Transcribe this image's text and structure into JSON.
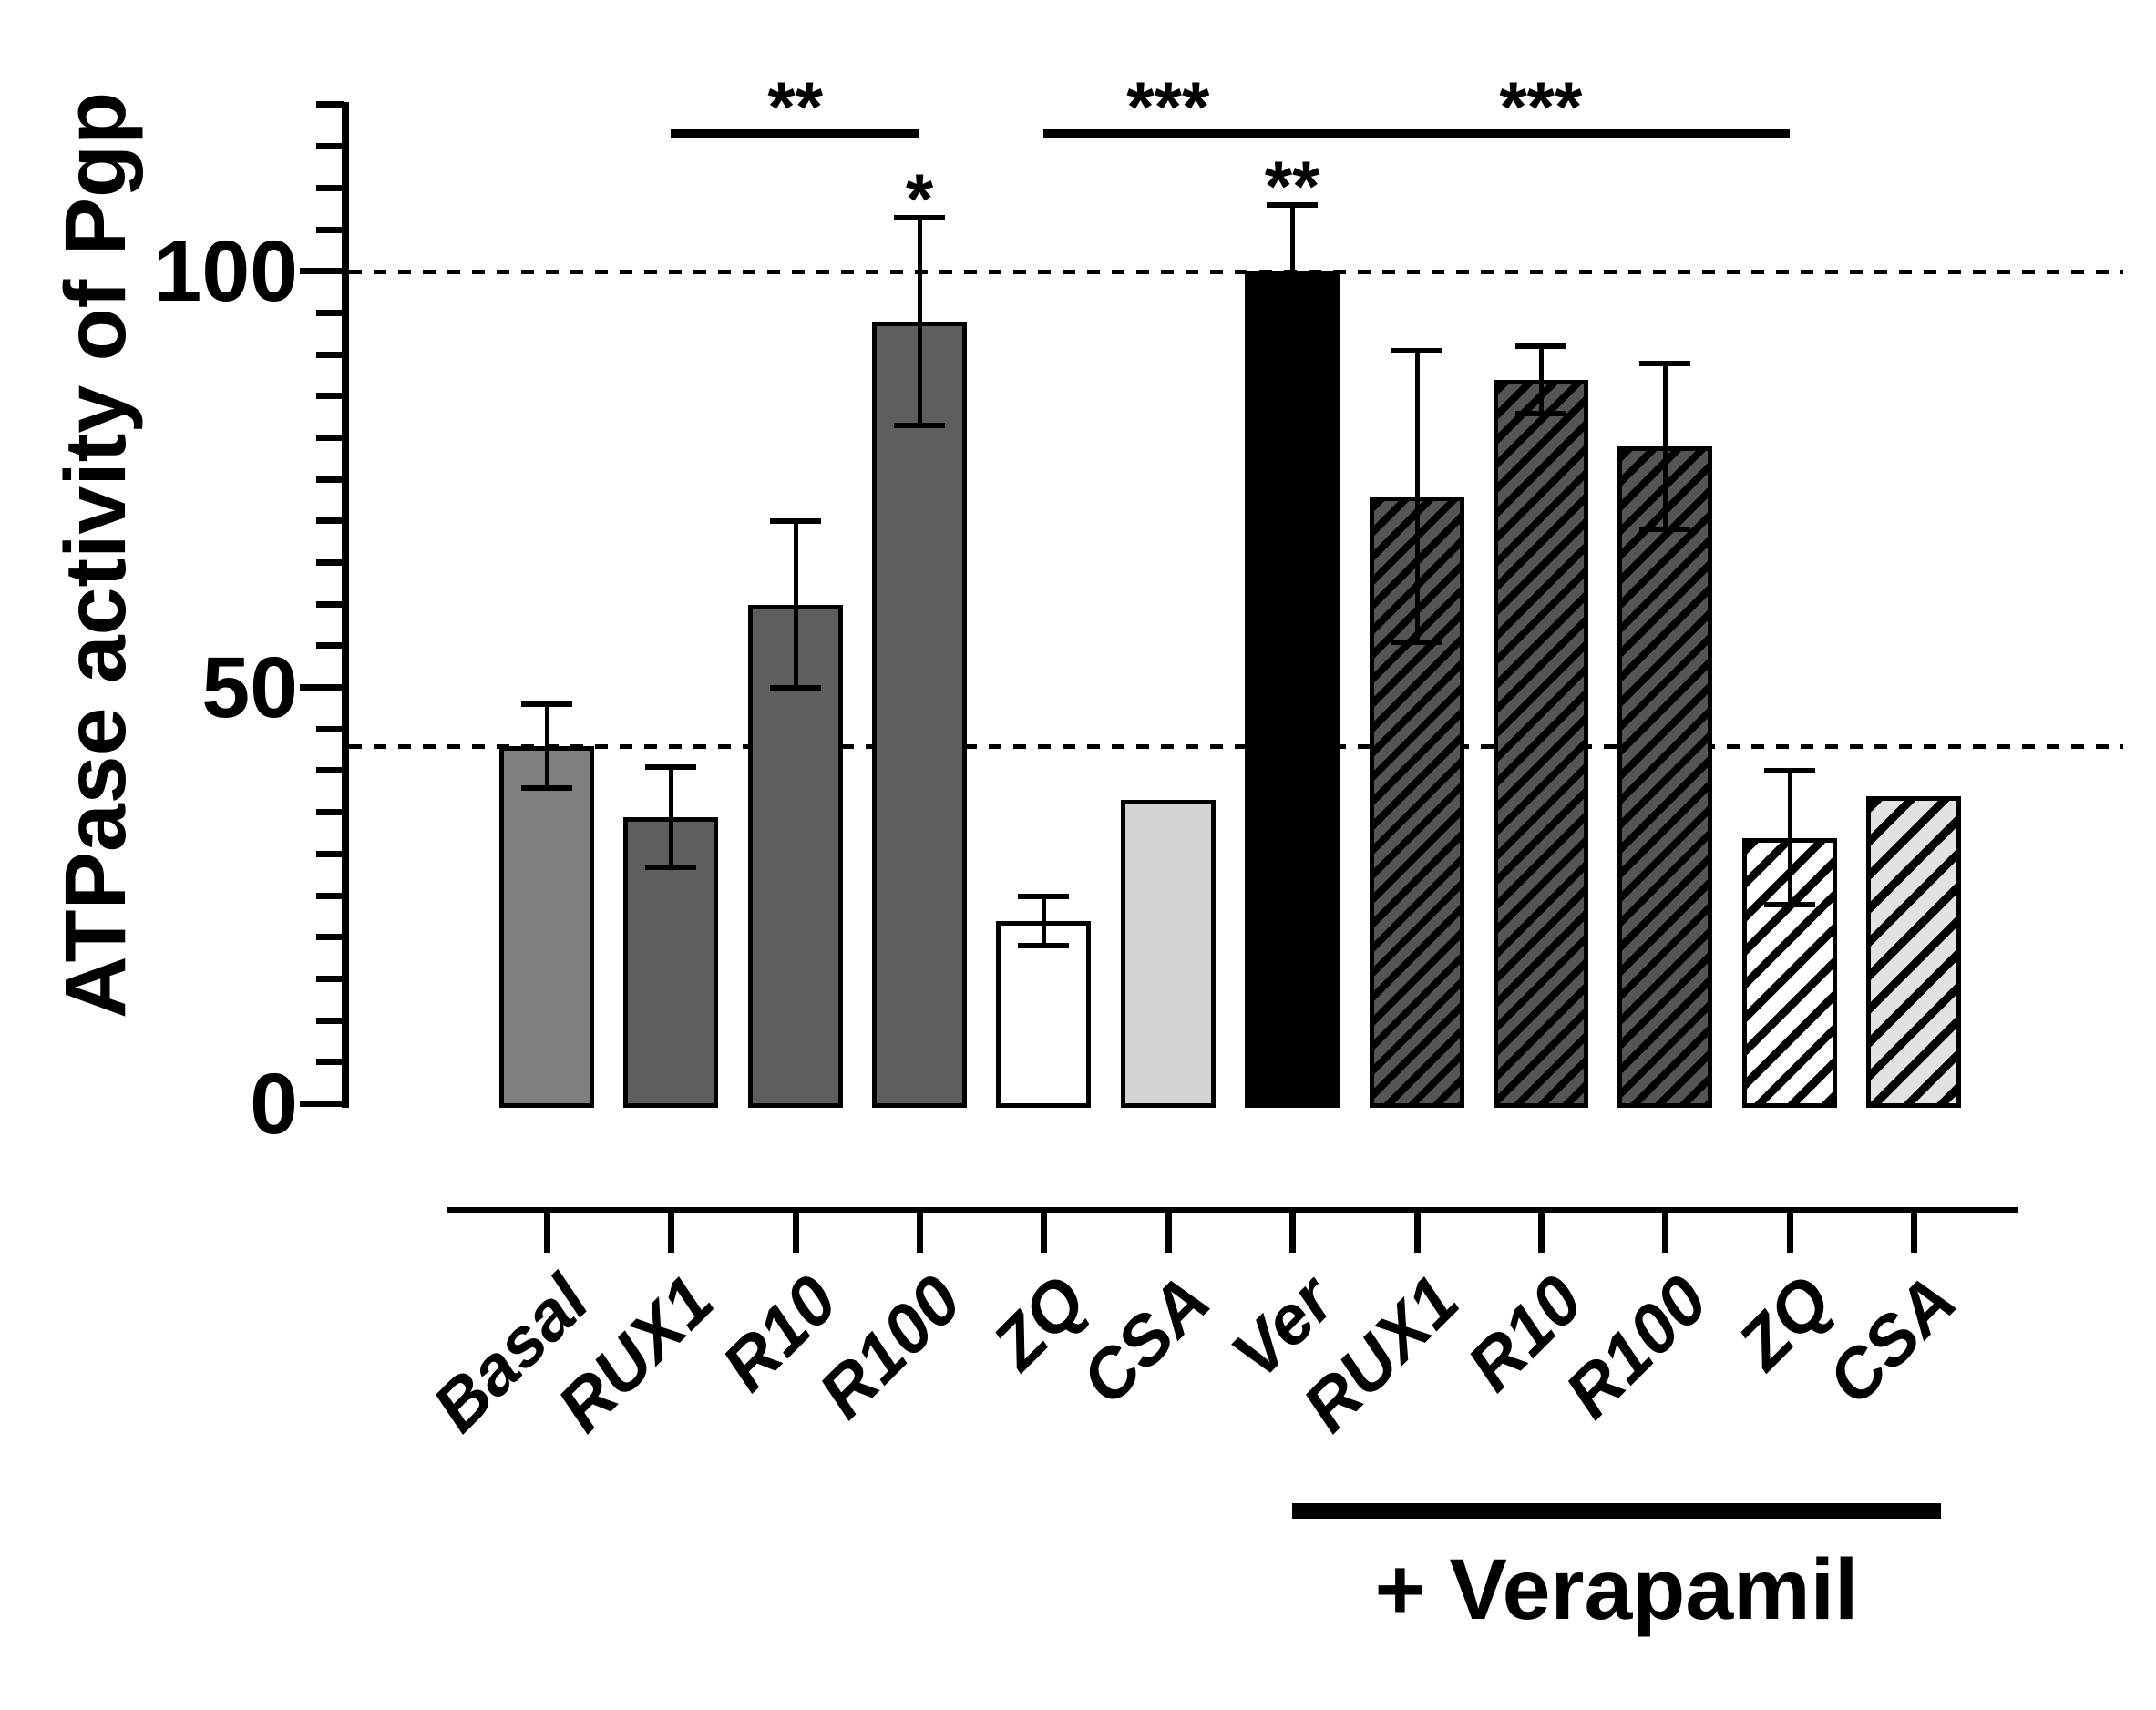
{
  "figure": {
    "background": "#ffffff",
    "text_color": "#000000"
  },
  "chart_data": {
    "type": "bar",
    "title": "",
    "xlabel": "",
    "ylabel": "ATPase activity of Pgp",
    "ylim": [
      0,
      120
    ],
    "y_ticks": [
      0,
      50,
      100
    ],
    "y_minor_step": 5,
    "grid": false,
    "legend": "none",
    "reference_lines_dashed": [
      43,
      100
    ],
    "categories": [
      "Basal",
      "RUX1",
      "R10",
      "R100",
      "ZQ",
      "CSA",
      "Ver",
      "RUX1",
      "R10",
      "R100",
      "ZQ",
      "CSA"
    ],
    "bars": [
      {
        "label": "Basal",
        "value": 43,
        "error": 5,
        "fill": "#7f7f7f",
        "hatch": false,
        "annotation": ""
      },
      {
        "label": "RUX1",
        "value": 34.5,
        "error": 6,
        "fill": "#5e5e5e",
        "hatch": false,
        "annotation": ""
      },
      {
        "label": "R10",
        "value": 60,
        "error": 10,
        "fill": "#5e5e5e",
        "hatch": false,
        "annotation": ""
      },
      {
        "label": "R100",
        "value": 94,
        "error": 12.5,
        "fill": "#5e5e5e",
        "hatch": false,
        "annotation": "*"
      },
      {
        "label": "ZQ",
        "value": 22,
        "error": 3,
        "fill": "#ffffff",
        "hatch": false,
        "annotation": ""
      },
      {
        "label": "CSA",
        "value": 36.5,
        "error": null,
        "fill": "#d4d4d4",
        "hatch": false,
        "annotation": ""
      },
      {
        "label": "Ver",
        "value": 100,
        "error": 8,
        "fill": "#000000",
        "hatch": false,
        "annotation": "**"
      },
      {
        "label": "RUX1",
        "value": 73,
        "error": 17.5,
        "fill": "#555555",
        "hatch": true,
        "annotation": ""
      },
      {
        "label": "R10",
        "value": 87,
        "error": 4,
        "fill": "#555555",
        "hatch": true,
        "annotation": ""
      },
      {
        "label": "R100",
        "value": 79,
        "error": 10,
        "fill": "#555555",
        "hatch": true,
        "annotation": ""
      },
      {
        "label": "ZQ",
        "value": 32,
        "error": 8,
        "fill": "#ffffff",
        "hatch": true,
        "annotation": ""
      },
      {
        "label": "CSA",
        "value": 37,
        "error": null,
        "fill": "#e2e2e2",
        "hatch": true,
        "annotation": ""
      }
    ],
    "significance_brackets": [
      {
        "label": "**",
        "from_index": 1,
        "to_index": 3
      },
      {
        "label": "***",
        "from_index": 4,
        "to_index": 6
      },
      {
        "label": "***",
        "from_index": 6,
        "to_index": 10
      }
    ],
    "group_label": {
      "text": "+ Verapamil",
      "from_index": 6,
      "to_index": 11
    }
  }
}
